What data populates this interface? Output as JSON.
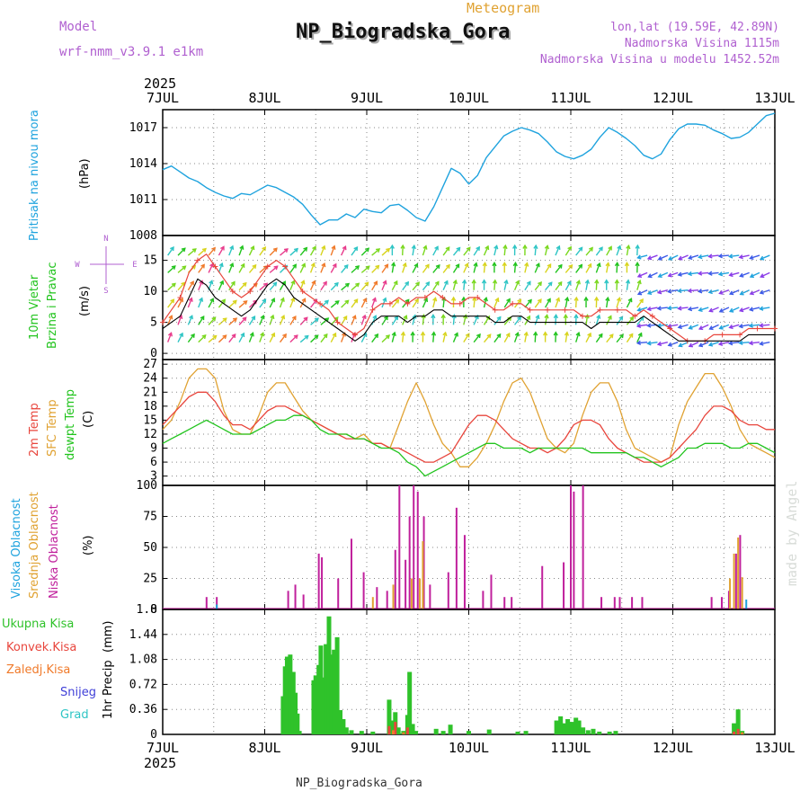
{
  "header": {
    "model_label": "Model",
    "model_name": "wrf-nmm_v3.9.1 e1km",
    "meteogram_label": "Meteogram",
    "station_title": "NP_Biogradska_Gora",
    "coords": "lon,lat (19.59E, 42.89N)",
    "elevation": "Nadmorska Visina 1115m",
    "model_elevation": "Nadmorska Visina u modelu 1452.52m",
    "footer_station": "NP_Biogradska_Gora",
    "watermark": "made by Angel",
    "year_top": "2025",
    "year_bottom": "2025"
  },
  "colors": {
    "pressure": "#1fa3de",
    "temp2m": "#e8453c",
    "sfc_temp": "#e0a232",
    "dewpoint": "#22c41e",
    "wind_mean": "#000000",
    "wind_gust": "#e8453c",
    "cloud_high": "#1fa3de",
    "cloud_mid": "#e0a232",
    "cloud_low": "#c0209c",
    "precip_total": "#2fc22a",
    "precip_conv": "#e8453c",
    "precip_frozen": "#f07a2a",
    "snow": "#4040d8",
    "hail": "#2ec5c5",
    "purple_text": "#b060d0",
    "grid": "#888888"
  },
  "chart_data": [
    {
      "type": "line",
      "panel": "pressure",
      "x_ticks": [
        "7JUL",
        "8JUL",
        "9JUL",
        "10JUL",
        "11JUL",
        "12JUL",
        "13JUL"
      ],
      "ylabel_title": "Pritisak na nivou mora",
      "ylabel_unit": "(hPa)",
      "ylim": [
        1008,
        1018.5
      ],
      "y_ticks": [
        "1008",
        "1011",
        "1014",
        "1017"
      ],
      "grid": true,
      "series": [
        {
          "values": [
            1013.5,
            1013.8,
            1013.3,
            1012.8,
            1012.5,
            1012.0,
            1011.6,
            1011.3,
            1011.1,
            1011.5,
            1011.4,
            1011.8,
            1012.2,
            1012.0,
            1011.6,
            1011.2,
            1010.6,
            1009.7,
            1008.9,
            1009.3,
            1009.3,
            1009.8,
            1009.5,
            1010.2,
            1010.0,
            1009.9,
            1010.5,
            1010.6,
            1010.1,
            1009.5,
            1009.2,
            1010.4,
            1012.0,
            1013.6,
            1013.2,
            1012.3,
            1013.0,
            1014.5,
            1015.4,
            1016.3,
            1016.7,
            1017.0,
            1016.8,
            1016.5,
            1015.8,
            1015.0,
            1014.6,
            1014.4,
            1014.7,
            1015.2,
            1016.2,
            1017.0,
            1016.6,
            1016.1,
            1015.5,
            1014.7,
            1014.4,
            1014.8,
            1016.0,
            1016.9,
            1017.3,
            1017.3,
            1017.2,
            1016.8,
            1016.5,
            1016.1,
            1016.2,
            1016.6,
            1017.3,
            1018.0,
            1018.2
          ]
        }
      ]
    },
    {
      "type": "line",
      "panel": "wind",
      "x_ticks": [
        "7JUL",
        "8JUL",
        "9JUL",
        "10JUL",
        "11JUL",
        "12JUL",
        "13JUL"
      ],
      "ylabel_title": "10m Vjetar",
      "ylabel_title2": "Brzina i Pravac",
      "ylabel_unit": "(m/s)",
      "compass": {
        "n": "N",
        "e": "E",
        "s": "S",
        "w": "W"
      },
      "ylim": [
        -1,
        19
      ],
      "y_ticks": [
        "0",
        "5",
        "10",
        "15"
      ],
      "grid": true,
      "series": [
        {
          "role": "mean",
          "values": [
            4,
            5,
            6,
            9,
            12,
            11,
            9,
            8,
            7,
            6,
            7,
            9,
            11,
            12,
            11,
            9,
            8,
            7,
            6,
            5,
            4,
            3,
            2,
            3,
            5,
            6,
            6,
            6,
            5,
            6,
            6,
            7,
            7,
            6,
            6,
            6,
            6,
            6,
            5,
            5,
            6,
            6,
            5,
            5,
            5,
            5,
            5,
            5,
            5,
            4,
            5,
            5,
            5,
            5,
            5,
            6,
            5,
            4,
            3,
            2,
            2,
            2,
            2,
            2,
            2,
            2,
            2,
            3,
            3,
            3,
            3
          ]
        },
        {
          "role": "gust",
          "values": [
            5,
            7,
            9,
            13,
            15,
            16,
            14,
            12,
            10,
            9,
            10,
            12,
            14,
            15,
            14,
            12,
            10,
            9,
            8,
            7,
            5,
            4,
            3,
            4,
            7,
            8,
            8,
            9,
            8,
            9,
            9,
            10,
            9,
            8,
            8,
            9,
            9,
            8,
            7,
            7,
            8,
            8,
            7,
            7,
            7,
            7,
            7,
            7,
            6,
            6,
            7,
            7,
            7,
            7,
            6,
            7,
            6,
            5,
            4,
            3,
            2,
            2,
            2,
            3,
            3,
            3,
            3,
            4,
            4,
            4,
            4
          ]
        }
      ]
    },
    {
      "type": "line",
      "panel": "temperature",
      "x_ticks": [
        "7JUL",
        "8JUL",
        "9JUL",
        "10JUL",
        "11JUL",
        "12JUL",
        "13JUL"
      ],
      "ylabel_title": "2m Temp",
      "ylabel_title2": "SFC Temp",
      "ylabel_title3": "dewpt Temp",
      "ylabel_unit": "(C)",
      "ylim": [
        1,
        28
      ],
      "y_ticks": [
        "3",
        "6",
        "9",
        "12",
        "15",
        "18",
        "21",
        "24",
        "27"
      ],
      "grid": true,
      "series": [
        {
          "role": "2m",
          "values": [
            14,
            16,
            18,
            20,
            21,
            21,
            19,
            16,
            14,
            14,
            13,
            15,
            17,
            18,
            18,
            17,
            16,
            15,
            14,
            13,
            12,
            11,
            11,
            11,
            10,
            10,
            9,
            9,
            8,
            7,
            6,
            6,
            7,
            8,
            11,
            14,
            16,
            16,
            15,
            13,
            11,
            10,
            9,
            9,
            8,
            9,
            11,
            14,
            15,
            15,
            14,
            11,
            9,
            8,
            7,
            6,
            6,
            6,
            7,
            9,
            11,
            13,
            16,
            18,
            18,
            17,
            15,
            14,
            14,
            13,
            13
          ]
        },
        {
          "role": "sfc",
          "values": [
            13,
            15,
            19,
            24,
            26,
            26,
            24,
            17,
            13,
            12,
            12,
            16,
            21,
            23,
            23,
            20,
            17,
            15,
            14,
            13,
            12,
            12,
            11,
            12,
            10,
            10,
            9,
            14,
            19,
            23,
            19,
            14,
            10,
            8,
            5,
            5,
            7,
            10,
            14,
            19,
            23,
            24,
            21,
            16,
            11,
            9,
            8,
            10,
            16,
            21,
            23,
            23,
            19,
            13,
            9,
            8,
            7,
            6,
            7,
            14,
            19,
            22,
            25,
            25,
            22,
            18,
            13,
            10,
            9,
            8,
            7
          ]
        },
        {
          "role": "dewpt",
          "values": [
            10,
            11,
            12,
            13,
            14,
            15,
            14,
            13,
            12,
            12,
            12,
            13,
            14,
            15,
            15,
            16,
            16,
            15,
            13,
            12,
            12,
            12,
            11,
            11,
            10,
            9,
            9,
            8,
            6,
            5,
            3,
            4,
            5,
            6,
            7,
            8,
            9,
            10,
            10,
            9,
            9,
            9,
            8,
            9,
            9,
            9,
            9,
            9,
            9,
            8,
            8,
            8,
            8,
            8,
            7,
            7,
            6,
            5,
            6,
            7,
            9,
            9,
            10,
            10,
            10,
            9,
            9,
            10,
            10,
            9,
            8
          ]
        }
      ]
    },
    {
      "type": "bar",
      "panel": "cloud",
      "x_ticks": [
        "7JUL",
        "8JUL",
        "9JUL",
        "10JUL",
        "11JUL",
        "12JUL",
        "13JUL"
      ],
      "ylabel_title": "Visoka Oblacnost",
      "ylabel_title2": "Srednja Oblacnost",
      "ylabel_title3": "Niska Oblacnost",
      "ylabel_unit": "(%)",
      "ylim": [
        0,
        100
      ],
      "y_ticks": [
        "0",
        "25",
        "50",
        "75",
        "100"
      ],
      "grid": true,
      "series": [
        {
          "role": "low",
          "bars": [
            [
              0.43,
              10
            ],
            [
              0.53,
              10
            ],
            [
              1.23,
              15
            ],
            [
              1.3,
              20
            ],
            [
              1.38,
              12
            ],
            [
              1.53,
              45
            ],
            [
              1.56,
              42
            ],
            [
              1.72,
              25
            ],
            [
              1.85,
              57
            ],
            [
              1.97,
              30
            ],
            [
              2.1,
              18
            ],
            [
              2.2,
              15
            ],
            [
              2.28,
              48
            ],
            [
              2.32,
              100
            ],
            [
              2.38,
              40
            ],
            [
              2.42,
              75
            ],
            [
              2.46,
              100
            ],
            [
              2.5,
              95
            ],
            [
              2.56,
              75
            ],
            [
              2.62,
              20
            ],
            [
              2.8,
              30
            ],
            [
              2.88,
              82
            ],
            [
              2.96,
              60
            ],
            [
              3.14,
              15
            ],
            [
              3.22,
              28
            ],
            [
              3.35,
              10
            ],
            [
              3.42,
              10
            ],
            [
              3.72,
              35
            ],
            [
              3.93,
              38
            ],
            [
              4.0,
              100
            ],
            [
              4.03,
              95
            ],
            [
              4.12,
              100
            ],
            [
              4.3,
              10
            ],
            [
              4.43,
              10
            ],
            [
              4.48,
              10
            ],
            [
              4.6,
              10
            ],
            [
              4.7,
              10
            ],
            [
              5.38,
              10
            ],
            [
              5.48,
              10
            ],
            [
              5.55,
              15
            ],
            [
              5.62,
              45
            ],
            [
              5.66,
              60
            ]
          ]
        },
        {
          "role": "mid",
          "bars": [
            [
              2.06,
              10
            ],
            [
              2.26,
              20
            ],
            [
              2.44,
              25
            ],
            [
              2.52,
              25
            ],
            [
              2.55,
              55
            ],
            [
              5.56,
              25
            ],
            [
              5.6,
              45
            ],
            [
              5.64,
              58
            ],
            [
              5.68,
              26
            ]
          ]
        },
        {
          "role": "high",
          "bars": [
            [
              0.53,
              4
            ],
            [
              5.72,
              8
            ]
          ]
        }
      ]
    },
    {
      "type": "bar",
      "panel": "precip",
      "x_ticks": [
        "7JUL",
        "8JUL",
        "9JUL",
        "10JUL",
        "11JUL",
        "12JUL",
        "13JUL"
      ],
      "ylabel_title": "1hr Precip",
      "ylabel_unit": "(mm)",
      "legend": [
        "Ukupna Kisa",
        "Konvek.Kisa",
        "Zaledj.Kisa",
        "Snijeg",
        "Grad"
      ],
      "ylim": [
        0,
        1.8
      ],
      "y_ticks": [
        "0",
        "0.36",
        "0.72",
        "1.08",
        "1.44",
        "1.8"
      ],
      "grid": true,
      "series": [
        {
          "role": "total",
          "bars": [
            [
              1.18,
              0.55
            ],
            [
              1.2,
              0.98
            ],
            [
              1.22,
              1.12
            ],
            [
              1.25,
              1.15
            ],
            [
              1.28,
              0.9
            ],
            [
              1.3,
              0.6
            ],
            [
              1.32,
              0.3
            ],
            [
              1.34,
              0.05
            ],
            [
              1.48,
              0.78
            ],
            [
              1.5,
              0.85
            ],
            [
              1.53,
              1.0
            ],
            [
              1.55,
              1.28
            ],
            [
              1.58,
              0.82
            ],
            [
              1.6,
              1.3
            ],
            [
              1.63,
              1.7
            ],
            [
              1.66,
              1.15
            ],
            [
              1.68,
              1.22
            ],
            [
              1.71,
              1.4
            ],
            [
              1.74,
              0.35
            ],
            [
              1.77,
              0.22
            ],
            [
              1.8,
              0.1
            ],
            [
              1.85,
              0.06
            ],
            [
              1.95,
              0.05
            ],
            [
              2.06,
              0.04
            ],
            [
              2.22,
              0.5
            ],
            [
              2.25,
              0.2
            ],
            [
              2.28,
              0.32
            ],
            [
              2.31,
              0.1
            ],
            [
              2.36,
              0.05
            ],
            [
              2.4,
              0.28
            ],
            [
              2.42,
              0.9
            ],
            [
              2.45,
              0.15
            ],
            [
              2.48,
              0.05
            ],
            [
              2.68,
              0.08
            ],
            [
              2.75,
              0.05
            ],
            [
              2.82,
              0.14
            ],
            [
              3.0,
              0.05
            ],
            [
              3.2,
              0.07
            ],
            [
              3.48,
              0.04
            ],
            [
              3.56,
              0.05
            ],
            [
              3.86,
              0.2
            ],
            [
              3.9,
              0.26
            ],
            [
              3.94,
              0.16
            ],
            [
              3.97,
              0.22
            ],
            [
              4.01,
              0.18
            ],
            [
              4.05,
              0.24
            ],
            [
              4.08,
              0.2
            ],
            [
              4.12,
              0.1
            ],
            [
              4.17,
              0.06
            ],
            [
              4.22,
              0.08
            ],
            [
              4.28,
              0.04
            ],
            [
              4.38,
              0.04
            ],
            [
              4.44,
              0.05
            ],
            [
              5.6,
              0.16
            ],
            [
              5.64,
              0.36
            ],
            [
              5.68,
              0.05
            ]
          ]
        },
        {
          "role": "conv",
          "bars": [
            [
              2.22,
              0.12
            ],
            [
              2.28,
              0.18
            ],
            [
              2.4,
              0.1
            ],
            [
              5.6,
              0.04
            ],
            [
              5.64,
              0.08
            ]
          ]
        },
        {
          "role": "frozen",
          "bars": [
            [
              2.26,
              0.06
            ],
            [
              2.36,
              0.03
            ],
            [
              5.68,
              0.03
            ]
          ]
        }
      ]
    }
  ]
}
